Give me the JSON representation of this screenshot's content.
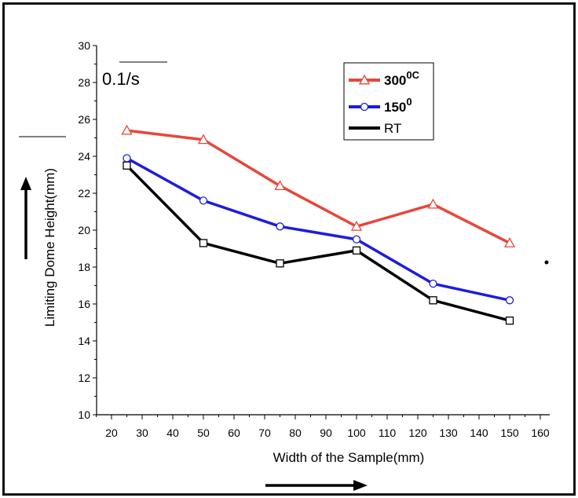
{
  "chart_data": {
    "type": "line",
    "title": "",
    "xlabel": "Width of the Sample(mm)",
    "ylabel": "Limiting Dome Height(mm)",
    "xlim": [
      15,
      160
    ],
    "ylim": [
      10,
      30
    ],
    "x_ticks": [
      "20",
      "30",
      "40",
      "50",
      "60",
      "70",
      "80",
      "90",
      "100",
      "110",
      "120",
      "130",
      "140",
      "150",
      "160"
    ],
    "y_ticks": [
      "10",
      "12",
      "14",
      "16",
      "18",
      "20",
      "22",
      "24",
      "26",
      "28",
      "30"
    ],
    "annotation": "0.1/s",
    "series": [
      {
        "name": "300",
        "superscript": "0C",
        "color": "#e8463a",
        "marker": "triangle",
        "x": [
          25,
          50,
          75,
          100,
          125,
          150
        ],
        "values": [
          25.4,
          24.9,
          22.4,
          20.2,
          21.4,
          19.3
        ]
      },
      {
        "name": "150",
        "superscript": "0",
        "color": "#1c1ce0",
        "marker": "circle",
        "x": [
          25,
          50,
          75,
          100,
          125,
          150
        ],
        "values": [
          23.9,
          21.6,
          20.2,
          19.5,
          17.1,
          16.2
        ]
      },
      {
        "name": "RT",
        "superscript": "",
        "color": "#000000",
        "marker": "square",
        "x": [
          25,
          50,
          75,
          100,
          125,
          150
        ],
        "values": [
          23.5,
          19.3,
          18.2,
          18.9,
          16.2,
          15.1
        ]
      }
    ]
  }
}
